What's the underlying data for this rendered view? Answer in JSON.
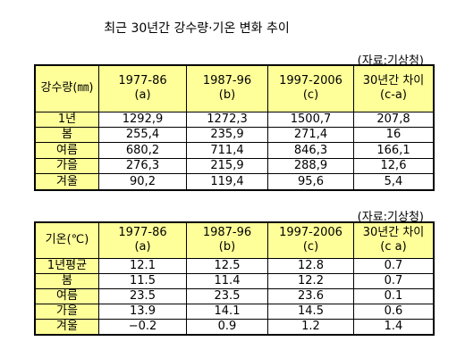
{
  "title": "최근 30년간 강수량·기온 변화 추이",
  "tables": [
    {
      "source": "(자료:기상청)",
      "header": [
        [
          "강수량(㎜)"
        ],
        [
          "1977-86",
          "(a)"
        ],
        [
          "1987-96",
          "(b)"
        ],
        [
          "1997-2006",
          "(c)"
        ],
        [
          "30년간 차이",
          "(c-a)"
        ]
      ],
      "rows": [
        [
          "1년",
          "1292,9",
          "1272,3",
          "1500,7",
          "207,8"
        ],
        [
          "봄",
          "255,4",
          "235,9",
          "271,4",
          "16"
        ],
        [
          "여름",
          "680,2",
          "711,4",
          "846,3",
          "166,1"
        ],
        [
          "가을",
          "276,3",
          "215,9",
          "288,9",
          "12,6"
        ],
        [
          "겨울",
          "90,2",
          "119,4",
          "95,6",
          "5,4"
        ]
      ]
    },
    {
      "source": "(자료:기상청)",
      "header": [
        [
          "기온(℃)"
        ],
        [
          "1977-86",
          "(a)"
        ],
        [
          "1987-96",
          "(b)"
        ],
        [
          "1997-2006",
          "(c)"
        ],
        [
          "30년간 차이",
          "(c a)"
        ]
      ],
      "rows": [
        [
          "1년평균",
          "12.1",
          "12.5",
          "12.8",
          "0.7"
        ],
        [
          "봄",
          "11.5",
          "11.4",
          "12.2",
          "0.7"
        ],
        [
          "여름",
          "23.5",
          "23.5",
          "23.6",
          "0.1"
        ],
        [
          "가을",
          "13.9",
          "14.1",
          "14.5",
          "0.6"
        ],
        [
          "겨울",
          "−0.2",
          "0.9",
          "1.2",
          "1.4"
        ]
      ]
    }
  ]
}
